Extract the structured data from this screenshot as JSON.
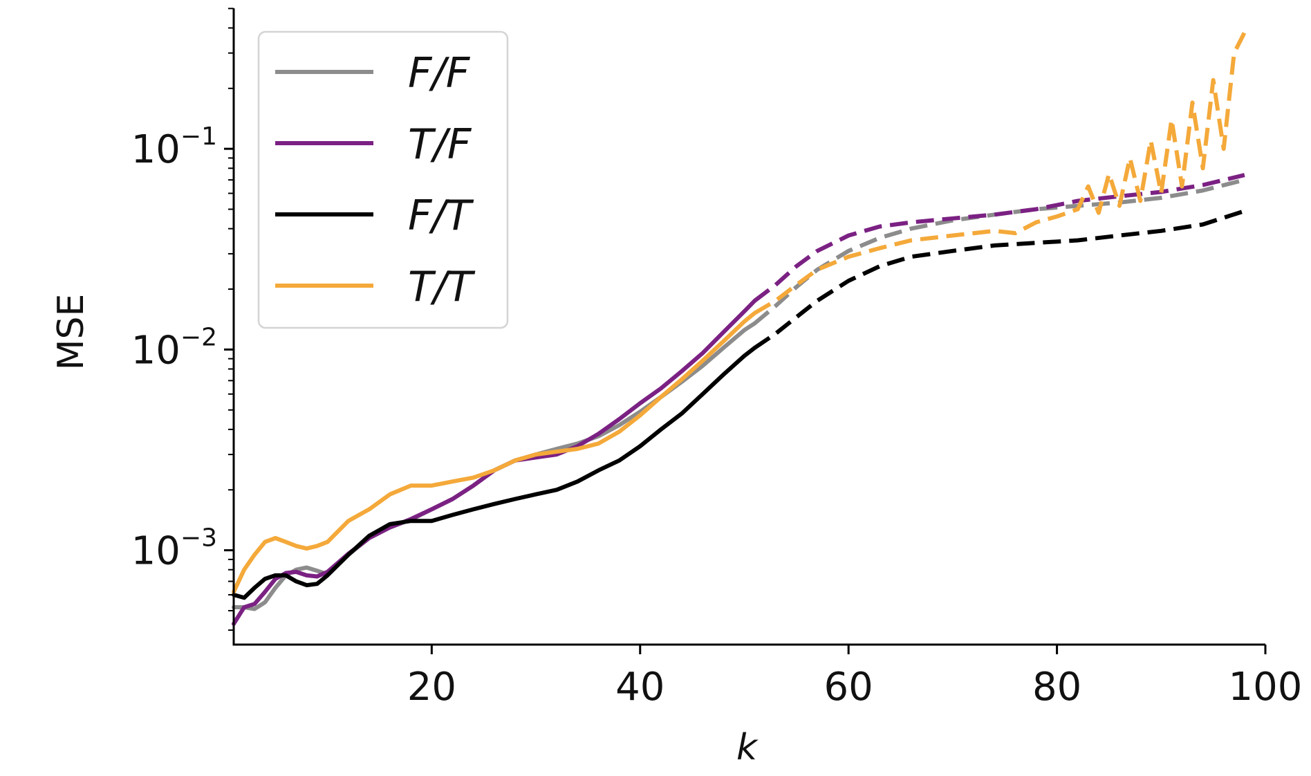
{
  "chart_data": {
    "type": "line",
    "title": "",
    "xlabel": "k",
    "ylabel": "MSE",
    "xlim": [
      1,
      100
    ],
    "ylim_log10": [
      -3.47,
      -0.3
    ],
    "y_scale": "log",
    "x_ticks": [
      20,
      40,
      60,
      80,
      100
    ],
    "x_tick_labels": [
      "20",
      "40",
      "60",
      "80",
      "100"
    ],
    "y_ticks": [
      {
        "exp": -3,
        "base": "10",
        "sup": "−3"
      },
      {
        "exp": -2,
        "base": "10",
        "sup": "−2"
      },
      {
        "exp": -1,
        "base": "10",
        "sup": "−1"
      }
    ],
    "grid": false,
    "legend_position": "top-left",
    "solid_until_k": 51,
    "series": [
      {
        "name": "F/F",
        "color": "#8c8c8c",
        "x": [
          1,
          2,
          3,
          4,
          5,
          6,
          7,
          8,
          9,
          10,
          12,
          14,
          16,
          18,
          20,
          22,
          24,
          26,
          28,
          30,
          32,
          34,
          36,
          38,
          40,
          42,
          44,
          46,
          48,
          50,
          51,
          53,
          55,
          57,
          60,
          63,
          66,
          70,
          74,
          78,
          82,
          86,
          90,
          94,
          98
        ],
        "y": [
          0.00052,
          0.00052,
          0.00051,
          0.00055,
          0.00065,
          0.00075,
          0.0008,
          0.00082,
          0.00079,
          0.00076,
          0.00095,
          0.00115,
          0.0013,
          0.00142,
          0.0016,
          0.0018,
          0.0021,
          0.0025,
          0.0028,
          0.003,
          0.0032,
          0.0034,
          0.0037,
          0.0042,
          0.0049,
          0.0058,
          0.0069,
          0.0083,
          0.0102,
          0.0125,
          0.0135,
          0.0165,
          0.0205,
          0.025,
          0.031,
          0.036,
          0.04,
          0.044,
          0.047,
          0.05,
          0.052,
          0.054,
          0.057,
          0.062,
          0.07
        ]
      },
      {
        "name": "T/F",
        "color": "#7b2183",
        "x": [
          1,
          2,
          3,
          4,
          5,
          6,
          7,
          8,
          9,
          10,
          12,
          14,
          16,
          18,
          20,
          22,
          24,
          26,
          28,
          30,
          32,
          34,
          36,
          38,
          40,
          42,
          44,
          46,
          48,
          50,
          51,
          53,
          55,
          57,
          60,
          63,
          66,
          70,
          74,
          78,
          82,
          86,
          90,
          94,
          98
        ],
        "y": [
          0.00043,
          0.00052,
          0.00054,
          0.00062,
          0.00072,
          0.00077,
          0.00078,
          0.00075,
          0.00074,
          0.00078,
          0.00096,
          0.00115,
          0.0013,
          0.00143,
          0.0016,
          0.0018,
          0.0021,
          0.0025,
          0.0028,
          0.0029,
          0.003,
          0.0033,
          0.0038,
          0.0045,
          0.0054,
          0.0064,
          0.0078,
          0.0096,
          0.0122,
          0.0155,
          0.0175,
          0.021,
          0.026,
          0.031,
          0.037,
          0.041,
          0.043,
          0.045,
          0.047,
          0.05,
          0.055,
          0.058,
          0.061,
          0.066,
          0.074
        ]
      },
      {
        "name": "F/T",
        "color": "#000000",
        "x": [
          1,
          2,
          3,
          4,
          5,
          6,
          7,
          8,
          9,
          10,
          12,
          14,
          16,
          18,
          20,
          22,
          24,
          26,
          28,
          30,
          32,
          34,
          36,
          38,
          40,
          42,
          44,
          46,
          48,
          50,
          51,
          53,
          55,
          57,
          60,
          63,
          66,
          70,
          74,
          78,
          82,
          86,
          90,
          94,
          98
        ],
        "y": [
          0.0006,
          0.00058,
          0.00065,
          0.00072,
          0.00075,
          0.00075,
          0.0007,
          0.00067,
          0.00068,
          0.00075,
          0.00095,
          0.00118,
          0.00135,
          0.0014,
          0.0014,
          0.0015,
          0.0016,
          0.0017,
          0.0018,
          0.0019,
          0.002,
          0.0022,
          0.0025,
          0.0028,
          0.0033,
          0.004,
          0.0048,
          0.006,
          0.0075,
          0.0093,
          0.0102,
          0.012,
          0.0145,
          0.0175,
          0.022,
          0.026,
          0.029,
          0.031,
          0.033,
          0.034,
          0.035,
          0.037,
          0.039,
          0.042,
          0.049
        ]
      },
      {
        "name": "T/T",
        "color": "#f4a93a",
        "x": [
          1,
          2,
          3,
          4,
          5,
          6,
          7,
          8,
          9,
          10,
          12,
          14,
          16,
          18,
          20,
          22,
          24,
          26,
          28,
          30,
          32,
          34,
          36,
          38,
          40,
          42,
          44,
          46,
          48,
          50,
          51,
          53,
          55,
          57,
          60,
          63,
          66,
          70,
          74,
          76,
          78,
          80,
          82,
          83,
          84,
          85,
          86,
          87,
          88,
          89,
          90,
          91,
          92,
          93,
          94,
          95,
          96,
          97,
          98
        ],
        "y": [
          0.00062,
          0.0008,
          0.00095,
          0.0011,
          0.00115,
          0.0011,
          0.00105,
          0.00102,
          0.00105,
          0.0011,
          0.0014,
          0.0016,
          0.0019,
          0.0021,
          0.0021,
          0.0022,
          0.0023,
          0.0025,
          0.0028,
          0.003,
          0.0031,
          0.0032,
          0.0034,
          0.0039,
          0.0047,
          0.0058,
          0.0071,
          0.0088,
          0.011,
          0.0138,
          0.0152,
          0.0175,
          0.021,
          0.025,
          0.029,
          0.032,
          0.035,
          0.037,
          0.039,
          0.038,
          0.043,
          0.046,
          0.05,
          0.065,
          0.048,
          0.075,
          0.052,
          0.09,
          0.055,
          0.11,
          0.06,
          0.14,
          0.065,
          0.17,
          0.08,
          0.22,
          0.1,
          0.3,
          0.38
        ]
      }
    ]
  }
}
